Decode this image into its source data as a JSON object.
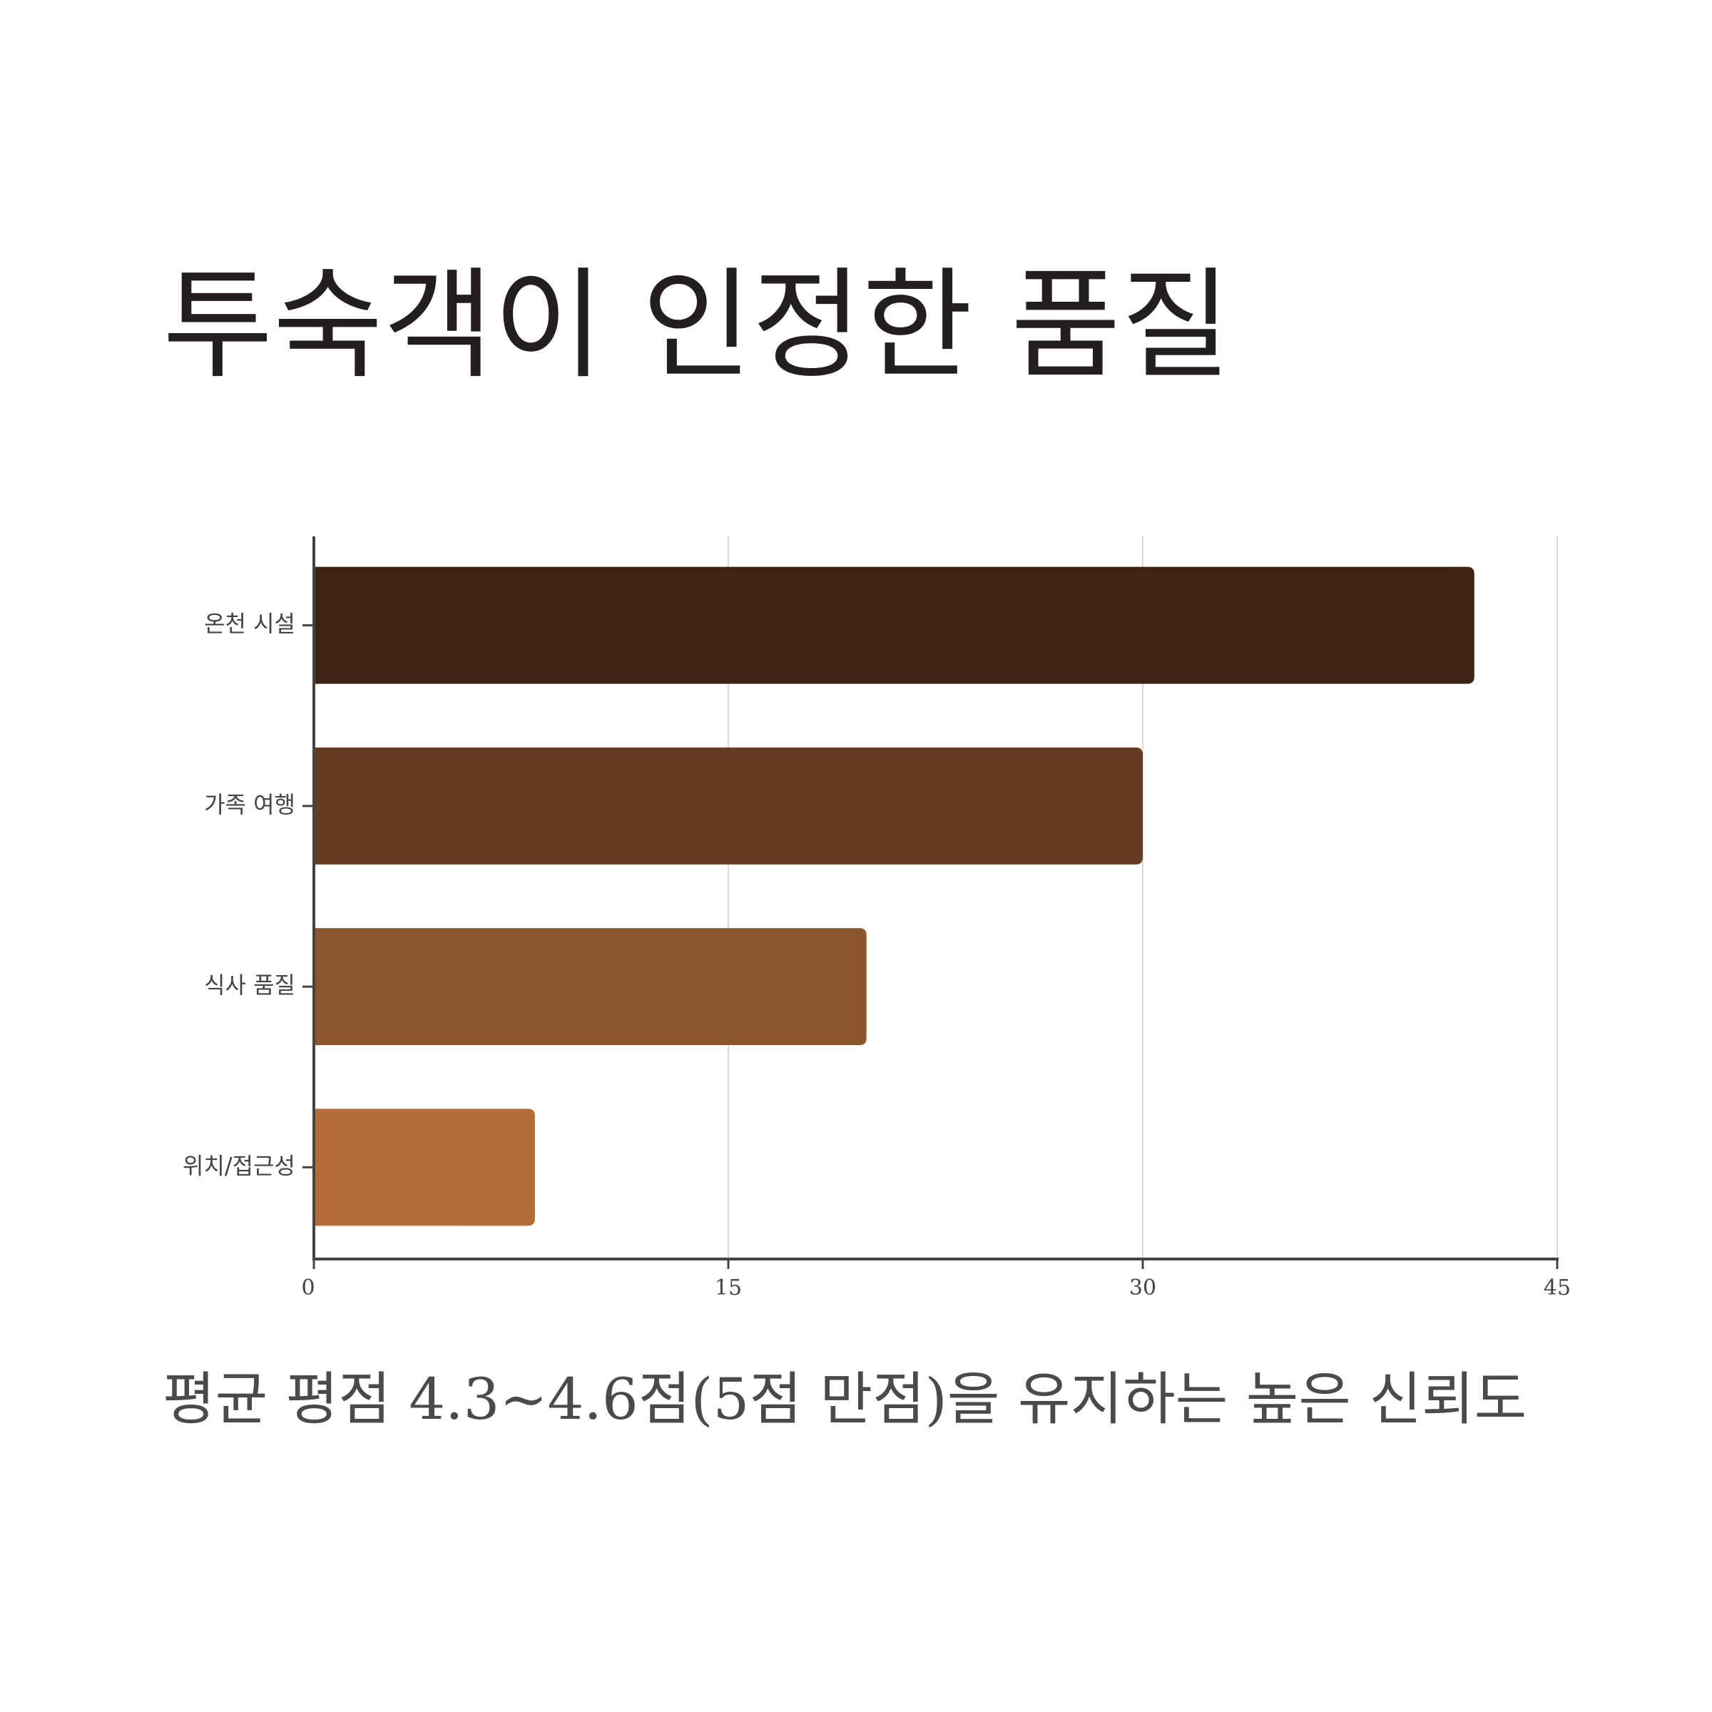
{
  "title": "투숙객이 인정한 품질",
  "subtitle": "평균 평점 4.3~4.6점(5점 만점)을 유지하는 높은 신뢰도",
  "chart_data": {
    "type": "bar",
    "orientation": "horizontal",
    "categories": [
      "온천 시설",
      "가족 여행",
      "식사 품질",
      "위치/접근성"
    ],
    "values": [
      42,
      30,
      20,
      8
    ],
    "colors": [
      "#3e2414",
      "#653c21",
      "#8b552e",
      "#b36c3a"
    ],
    "xlim": [
      0,
      45
    ],
    "xticks": [
      0,
      15,
      30,
      45
    ],
    "grid": "vertical",
    "legend": "none"
  }
}
